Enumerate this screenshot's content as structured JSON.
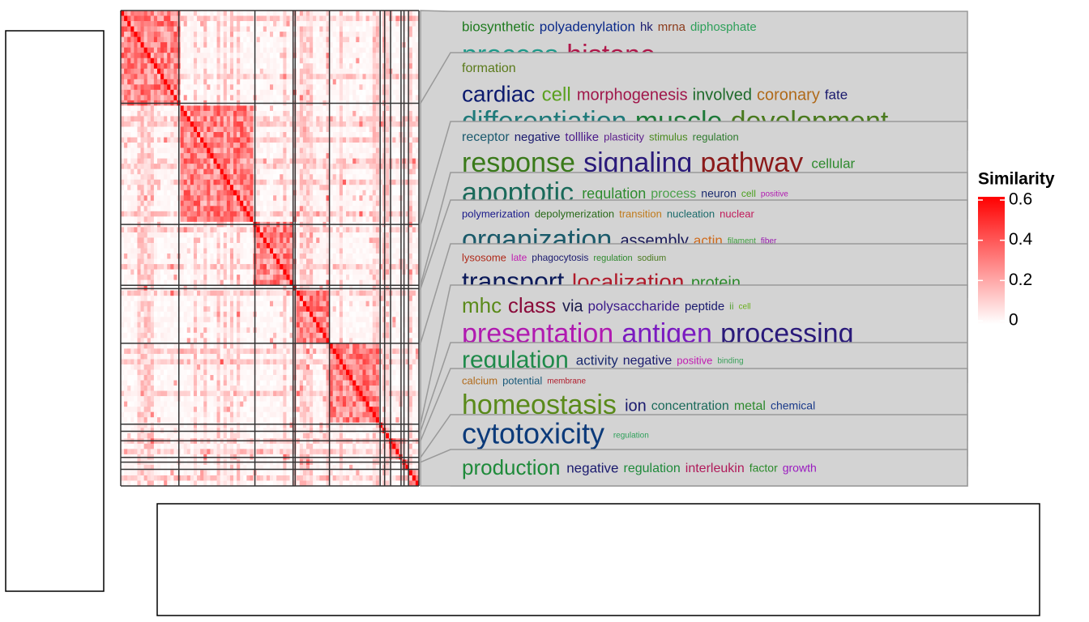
{
  "chart_data": {
    "type": "heatmap",
    "legend": {
      "title": "Similarity",
      "lim": [
        0,
        0.6
      ],
      "ticks": [
        0,
        0.2,
        0.4,
        0.6
      ],
      "colors": [
        "#ffffff",
        "#ff0000"
      ]
    },
    "clusters": [
      {
        "lines": [
          [
            {
              "text": "biosynthetic",
              "color": "#1e7a1e"
            },
            {
              "text": "polyadenylation",
              "color": "#0b2a8a"
            },
            {
              "text": "hk",
              "color": "#1a1a6e"
            },
            {
              "text": "mrna",
              "color": "#8b3a1a"
            },
            {
              "text": "diphosphate",
              "color": "#2ea05a"
            }
          ],
          [
            {
              "text": "process",
              "color": "#1f9a8a"
            },
            {
              "text": "histone",
              "color": "#b0174a"
            }
          ]
        ]
      },
      {
        "lines": [
          [
            {
              "text": "formation",
              "color": "#5a7a1a"
            }
          ],
          [
            {
              "text": "cardiac",
              "color": "#0b1a6e"
            },
            {
              "text": "cell",
              "color": "#5aa01e"
            },
            {
              "text": "morphogenesis",
              "color": "#a0174a"
            },
            {
              "text": "involved",
              "color": "#1e6a2a"
            },
            {
              "text": "coronary",
              "color": "#b06a1a"
            },
            {
              "text": "fate",
              "color": "#1a1a6e"
            }
          ],
          [
            {
              "text": "differentiation",
              "color": "#1f7a7a"
            },
            {
              "text": "muscle",
              "color": "#1e7a3a"
            },
            {
              "text": "development",
              "color": "#4a7a1e"
            }
          ]
        ]
      },
      {
        "lines": [
          [
            {
              "text": "receptor",
              "color": "#1a5a6e"
            },
            {
              "text": "negative",
              "color": "#1a1a6e"
            },
            {
              "text": "tolllike",
              "color": "#4a1a8a"
            },
            {
              "text": "plasticity",
              "color": "#5a1a8a"
            },
            {
              "text": "stimulus",
              "color": "#4a8a1e"
            },
            {
              "text": "regulation",
              "color": "#2e7a2e"
            }
          ],
          [
            {
              "text": "response",
              "color": "#3a7a1a"
            },
            {
              "text": "signaling",
              "color": "#2a1a7a"
            },
            {
              "text": "pathway",
              "color": "#8b1a1a"
            },
            {
              "text": "cellular",
              "color": "#2e8a2e"
            }
          ]
        ]
      },
      {
        "lines": [
          [
            {
              "text": "apoptotic",
              "color": "#1a6a5a"
            },
            {
              "text": "regulation",
              "color": "#2e8a2e"
            },
            {
              "text": "process",
              "color": "#4aa04a"
            },
            {
              "text": "neuron",
              "color": "#1a2a6e"
            },
            {
              "text": "cell",
              "color": "#4aa01e"
            },
            {
              "text": "positive",
              "color": "#b01ab0"
            }
          ]
        ]
      },
      {
        "lines": [
          [
            {
              "text": "polymerization",
              "color": "#1a1a8a"
            },
            {
              "text": "depolymerization",
              "color": "#2a6a1a"
            },
            {
              "text": "transition",
              "color": "#c07a1a"
            },
            {
              "text": "nucleation",
              "color": "#1a6a6a"
            },
            {
              "text": "nuclear",
              "color": "#c01a5a"
            }
          ],
          [
            {
              "text": "organization",
              "color": "#1a5a6a"
            },
            {
              "text": "assembly",
              "color": "#1a1a5a"
            },
            {
              "text": "actin",
              "color": "#d06a1a"
            },
            {
              "text": "filament",
              "color": "#3aa03a"
            },
            {
              "text": "fiber",
              "color": "#9a1ab0"
            }
          ]
        ]
      },
      {
        "lines": [
          [
            {
              "text": "lysosome",
              "color": "#b02a1a"
            },
            {
              "text": "late",
              "color": "#c01ab0"
            },
            {
              "text": "phagocytosis",
              "color": "#1a1a6e"
            },
            {
              "text": "regulation",
              "color": "#2e8a2e"
            },
            {
              "text": "sodium",
              "color": "#4a7a1e"
            }
          ],
          [
            {
              "text": "transport",
              "color": "#0b1a5a"
            },
            {
              "text": "localization",
              "color": "#b01a2a"
            },
            {
              "text": "protein",
              "color": "#2e8a2e"
            }
          ]
        ]
      },
      {
        "lines": [
          [
            {
              "text": "mhc",
              "color": "#5a8a1a"
            },
            {
              "text": "class",
              "color": "#8a0a3a"
            },
            {
              "text": "via",
              "color": "#1a1a4a"
            },
            {
              "text": "polysaccharide",
              "color": "#3a1a8a"
            },
            {
              "text": "peptide",
              "color": "#1a1a6e"
            },
            {
              "text": "ii",
              "color": "#5aa03a"
            },
            {
              "text": "cell",
              "color": "#6ab01a"
            }
          ],
          [
            {
              "text": "presentation",
              "color": "#b01ab0"
            },
            {
              "text": "antigen",
              "color": "#7a1ac0"
            },
            {
              "text": "processing",
              "color": "#2a1a7a"
            }
          ]
        ]
      },
      {
        "lines": [
          [
            {
              "text": "regulation",
              "color": "#1e8a4a"
            },
            {
              "text": "activity",
              "color": "#1a2a6e"
            },
            {
              "text": "negative",
              "color": "#1a1a6e"
            },
            {
              "text": "positive",
              "color": "#c01ab0"
            },
            {
              "text": "binding",
              "color": "#3aa05a"
            }
          ]
        ]
      },
      {
        "lines": [
          [
            {
              "text": "calcium",
              "color": "#b06a1a"
            },
            {
              "text": "potential",
              "color": "#1a5a7a"
            },
            {
              "text": "membrane",
              "color": "#b01a2a"
            }
          ],
          [
            {
              "text": "homeostasis",
              "color": "#5a8a1a"
            },
            {
              "text": "ion",
              "color": "#1a1a6e"
            },
            {
              "text": "concentration",
              "color": "#1a6a5a"
            },
            {
              "text": "metal",
              "color": "#2e8a2e"
            },
            {
              "text": "chemical",
              "color": "#1a3a8a"
            }
          ]
        ]
      },
      {
        "lines": [
          [
            {
              "text": "cytotoxicity",
              "color": "#0b3a7a"
            },
            {
              "text": "regulation",
              "color": "#2ea05a"
            }
          ]
        ]
      },
      {
        "lines": [
          [
            {
              "text": "production",
              "color": "#1e8a3a"
            },
            {
              "text": "negative",
              "color": "#1a1a6e"
            },
            {
              "text": "regulation",
              "color": "#1e8a3a"
            },
            {
              "text": "interleukin",
              "color": "#b01a5a"
            },
            {
              "text": "factor",
              "color": "#2a8a2a"
            },
            {
              "text": "growth",
              "color": "#9a1ac0"
            }
          ]
        ]
      }
    ]
  }
}
